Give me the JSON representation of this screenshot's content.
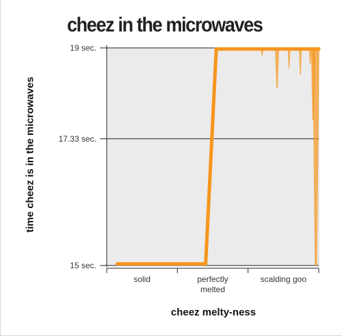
{
  "chart_data": {
    "type": "line",
    "title": "cheez in the microwaves",
    "xlabel": "cheez melty-ness",
    "ylabel": "time cheez is in the microwaves",
    "categories": [
      "solid",
      "perfectly melted",
      "scalding goo"
    ],
    "category_display": [
      [
        "solid"
      ],
      [
        "perfectly",
        "melted"
      ],
      [
        "scalding goo"
      ]
    ],
    "yticks": [
      {
        "value": 15,
        "label": "15 sec."
      },
      {
        "value": 17.33,
        "label": "17.33 sec."
      },
      {
        "value": 19,
        "label": "19 sec."
      }
    ],
    "ylim": [
      15,
      19
    ],
    "xlim": [
      0,
      3
    ],
    "series": [
      {
        "color": "#f7951d",
        "points": [
          {
            "x": 0.15,
            "y": 15.03
          },
          {
            "x": 1.4,
            "y": 15.03
          },
          {
            "x": 1.55,
            "y": 18.98
          },
          {
            "x": 3.0,
            "y": 18.98
          }
        ]
      }
    ],
    "grid": "horizontal",
    "background": "#ebebeb",
    "legend": "none"
  }
}
